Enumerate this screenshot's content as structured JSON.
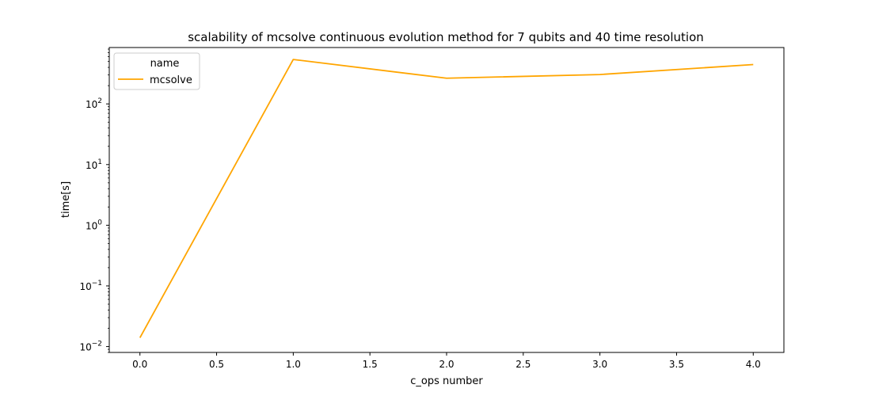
{
  "chart_data": {
    "type": "line",
    "title": "scalability of mcsolve continuous evolution method for 7 qubits and 40 time resolution",
    "xlabel": "c_ops number",
    "ylabel": "time[s]",
    "x": [
      0.0,
      1.0,
      2.0,
      3.0,
      4.0
    ],
    "xlim": [
      -0.2,
      4.2
    ],
    "xticks": [
      "0.0",
      "0.5",
      "1.0",
      "1.5",
      "2.0",
      "2.5",
      "3.0",
      "3.5",
      "4.0"
    ],
    "yscale": "log",
    "ylim": [
      0.008,
      850
    ],
    "yticks": [
      {
        "base": "10",
        "exp": "−2"
      },
      {
        "base": "10",
        "exp": "−1"
      },
      {
        "base": "10",
        "exp": "0"
      },
      {
        "base": "10",
        "exp": "1"
      },
      {
        "base": "10",
        "exp": "2"
      }
    ],
    "grid": false,
    "legend": {
      "position": "top-left",
      "title": "name"
    },
    "series": [
      {
        "name": "mcsolve",
        "color": "#ffa500",
        "values": [
          0.014,
          540,
          265,
          305,
          445
        ]
      }
    ]
  }
}
